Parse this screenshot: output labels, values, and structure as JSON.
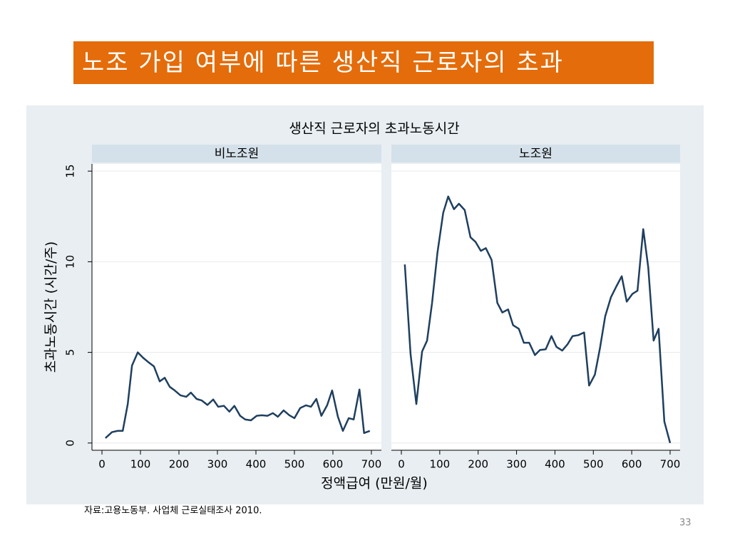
{
  "slide_title": "노조 가입 여부에 따른 생산직 근로자의 초과",
  "figure": {
    "title": "생산직 근로자의 초과노동시간",
    "ylabel": "초과노동시간 (시간/주)",
    "xlabel": "정액급여 (만원/월)"
  },
  "chart_data": [
    {
      "type": "line",
      "title": "비노조원",
      "color": "#1f3f5f",
      "x": [
        9,
        26,
        41,
        54,
        67,
        78,
        93,
        107,
        120,
        135,
        150,
        163,
        176,
        189,
        204,
        219,
        231,
        246,
        259,
        274,
        289,
        302,
        317,
        331,
        344,
        359,
        372,
        387,
        402,
        415,
        430,
        444,
        457,
        472,
        487,
        500,
        515,
        530,
        543,
        557,
        570,
        585,
        598,
        613,
        626,
        641,
        654,
        669,
        681,
        696
      ],
      "values": [
        0.27,
        0.6,
        0.67,
        0.67,
        2.15,
        4.27,
        5.0,
        4.7,
        4.47,
        4.23,
        3.4,
        3.6,
        3.1,
        2.9,
        2.63,
        2.55,
        2.78,
        2.43,
        2.35,
        2.1,
        2.4,
        2.0,
        2.05,
        1.73,
        2.05,
        1.5,
        1.3,
        1.25,
        1.5,
        1.53,
        1.5,
        1.65,
        1.45,
        1.8,
        1.53,
        1.37,
        1.93,
        2.08,
        2.0,
        2.43,
        1.5,
        2.08,
        2.9,
        1.45,
        0.67,
        1.37,
        1.3,
        2.95,
        0.55,
        0.67
      ],
      "xlim": [
        -26,
        726
      ],
      "ylim": [
        -0.4,
        15.4
      ],
      "xticks": [
        0,
        100,
        200,
        300,
        400,
        500,
        600,
        700
      ],
      "yticks": [
        0,
        5,
        10,
        15
      ]
    },
    {
      "type": "line",
      "title": "노조원",
      "color": "#1f3f5f",
      "x": [
        9,
        24,
        39,
        54,
        67,
        80,
        94,
        109,
        122,
        137,
        150,
        165,
        180,
        193,
        207,
        220,
        235,
        250,
        263,
        278,
        291,
        306,
        319,
        333,
        348,
        361,
        376,
        391,
        404,
        419,
        433,
        446,
        461,
        476,
        489,
        504,
        517,
        531,
        546,
        559,
        574,
        587,
        602,
        615,
        630,
        643,
        657,
        670,
        685,
        700
      ],
      "values": [
        9.85,
        4.9,
        2.15,
        5.05,
        5.65,
        7.73,
        10.5,
        12.7,
        13.6,
        12.9,
        13.2,
        12.85,
        11.35,
        11.1,
        10.6,
        10.75,
        10.1,
        7.73,
        7.2,
        7.37,
        6.5,
        6.3,
        5.53,
        5.53,
        4.85,
        5.13,
        5.17,
        5.9,
        5.3,
        5.1,
        5.45,
        5.9,
        5.95,
        6.1,
        3.17,
        3.77,
        5.2,
        7.0,
        8.05,
        8.6,
        9.2,
        7.8,
        8.23,
        8.4,
        11.8,
        9.7,
        5.65,
        6.3,
        1.18,
        0
      ],
      "xlim": [
        -26,
        726
      ],
      "ylim": [
        -0.4,
        15.4
      ],
      "xticks": [
        0,
        100,
        200,
        300,
        400,
        500,
        600,
        700
      ],
      "yticks": [
        0,
        5,
        10,
        15
      ]
    }
  ],
  "source": "자료:고용노동부. 사업체 근로실태조사 2010.",
  "page_number": "33"
}
